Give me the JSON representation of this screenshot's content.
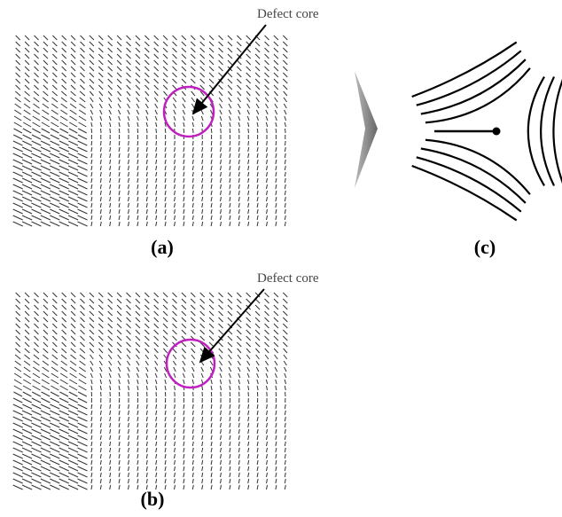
{
  "panels": [
    {
      "annotation": "Defect core",
      "label": "(a)"
    },
    {
      "annotation": "Defect core",
      "label": "(b)"
    },
    {
      "label": "(c)"
    }
  ]
}
